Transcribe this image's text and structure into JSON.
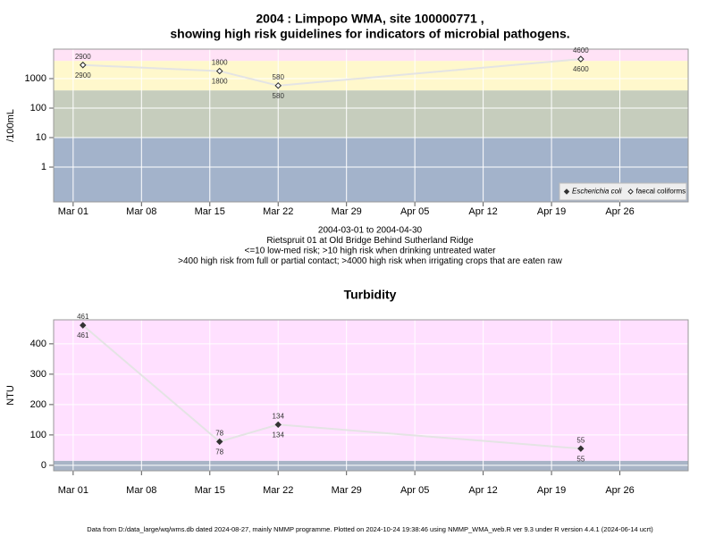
{
  "chart_data": [
    {
      "type": "line",
      "title": [
        "2004 : Limpopo WMA, site 100000771 ,",
        "showing high risk guidelines for indicators of microbial pathogens."
      ],
      "subtitle": [
        "2004-03-01 to 2004-04-30",
        "Rietspruit 01 at Old Bridge Behind Sutherland Ridge",
        "<=10 low-med risk; >10 high risk when drinking untreated water",
        ">400 high risk from full or partial contact; >4000 high risk when irrigating crops that are eaten raw"
      ],
      "ylabel": "/100mL",
      "log_scale": true,
      "grid": true,
      "legend": "lower right",
      "x": [
        "Mar 02",
        "Mar 16",
        "Mar 22",
        "Apr 22"
      ],
      "xlim": [
        "Feb 28",
        "May 03"
      ],
      "xticks": [
        "Mar 01",
        "Mar 08",
        "Mar 15",
        "Mar 22",
        "Mar 29",
        "Apr 05",
        "Apr 12",
        "Apr 19",
        "Apr 26"
      ],
      "ylim": [
        0.066,
        10000
      ],
      "yticks": [
        1,
        10,
        100,
        1000
      ],
      "bands": [
        {
          "upto": 10,
          "color": "#a3b3cb"
        },
        {
          "upto": 400,
          "color": "#c6cdbd"
        },
        {
          "upto": 4000,
          "color": "#fff8cc"
        },
        {
          "upto": 10000,
          "color": "#ffe2f6"
        }
      ],
      "series": [
        {
          "name": "Escherichia coli",
          "color": "#333333",
          "marker": "filled",
          "label_pos": "below",
          "values": [
            2900,
            1800,
            580,
            4600
          ]
        },
        {
          "name": "faecal coliforms",
          "color": "#333333",
          "marker": "open",
          "label_pos": "above",
          "line_color": "#e4e4e4",
          "values": [
            2900,
            1800,
            580,
            4600
          ]
        }
      ]
    },
    {
      "type": "line",
      "title": [
        "Turbidity"
      ],
      "ylabel": "NTU",
      "log_scale": false,
      "grid": true,
      "x": [
        "Mar 02",
        "Mar 16",
        "Mar 22",
        "Apr 22"
      ],
      "xlim": [
        "Feb 28",
        "May 03"
      ],
      "xticks": [
        "Mar 01",
        "Mar 08",
        "Mar 15",
        "Mar 22",
        "Mar 29",
        "Apr 05",
        "Apr 12",
        "Apr 19",
        "Apr 26"
      ],
      "ylim": [
        -18,
        479
      ],
      "yticks": [
        0,
        100,
        200,
        300,
        400
      ],
      "bands": [
        {
          "upto": 15,
          "color": "#a8b4c6"
        },
        {
          "upto": 479,
          "color": "#ffe0ff"
        }
      ],
      "series": [
        {
          "name": "Turbidity",
          "color": "#333333",
          "marker": "filled",
          "label_pos": "both",
          "line_color": "#e4e4e4",
          "values": [
            461,
            78,
            134,
            55
          ]
        }
      ]
    }
  ],
  "footer": "Data from D:/data_large/wq/wms.db dated 2024-08-27, mainly NMMP programme. Plotted on 2024-10-24 19:38:46 using NMMP_WMA_web.R ver 9.3 under R version 4.4.1 (2024-06-14 ucrt)"
}
